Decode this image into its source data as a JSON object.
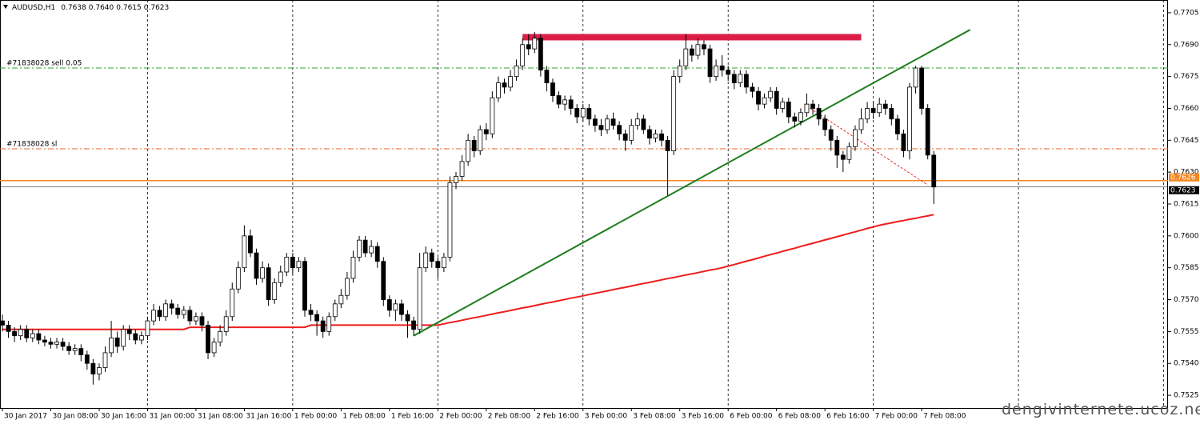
{
  "chart_data": {
    "type": "candlestick",
    "header": {
      "symbol": "AUDUSD,H1",
      "values": [
        "0.7638",
        "0.7640",
        "0.7615",
        "0.7623"
      ]
    },
    "categories": [
      "30 Jan 2017",
      null,
      null,
      null,
      null,
      null,
      null,
      null,
      "30 Jan 08:00",
      null,
      null,
      null,
      null,
      null,
      null,
      null,
      "30 Jan 16:00",
      null,
      null,
      null,
      null,
      null,
      null,
      null,
      "31 Jan 00:00",
      null,
      null,
      null,
      null,
      null,
      null,
      null,
      "31 Jan 08:00",
      null,
      null,
      null,
      null,
      null,
      null,
      null,
      "31 Jan 16:00",
      null,
      null,
      null,
      null,
      null,
      null,
      null,
      "1 Feb 00:00",
      null,
      null,
      null,
      null,
      null,
      null,
      null,
      "1 Feb 08:00",
      null,
      null,
      null,
      null,
      null,
      null,
      null,
      "1 Feb 16:00",
      null,
      null,
      null,
      null,
      null,
      null,
      null,
      "2 Feb 00:00",
      null,
      null,
      null,
      null,
      null,
      null,
      null,
      "2 Feb 08:00",
      null,
      null,
      null,
      null,
      null,
      null,
      null,
      "2 Feb 16:00",
      null,
      null,
      null,
      null,
      null,
      null,
      null,
      "3 Feb 00:00",
      null,
      null,
      null,
      null,
      null,
      null,
      null,
      "3 Feb 08:00",
      null,
      null,
      null,
      null,
      null,
      null,
      null,
      "3 Feb 16:00",
      null,
      null,
      null,
      null,
      null,
      null,
      null,
      "6 Feb 00:00",
      null,
      null,
      null,
      null,
      null,
      null,
      null,
      "6 Feb 08:00",
      null,
      null,
      null,
      null,
      null,
      null,
      null,
      "6 Feb 16:00",
      null,
      null,
      null,
      null,
      null,
      null,
      null,
      "7 Feb 00:00",
      null,
      null,
      null,
      null,
      null,
      null,
      null,
      "7 Feb 08:00",
      null,
      null
    ],
    "ohlc": [
      [
        0.756,
        0.7563,
        0.7555,
        0.7558
      ],
      [
        0.7558,
        0.756,
        0.7552,
        0.7555
      ],
      [
        0.7555,
        0.7557,
        0.755,
        0.7553
      ],
      [
        0.7553,
        0.7558,
        0.7551,
        0.7556
      ],
      [
        0.7556,
        0.7558,
        0.755,
        0.7552
      ],
      [
        0.7552,
        0.7556,
        0.755,
        0.7554
      ],
      [
        0.7554,
        0.7556,
        0.7549,
        0.7551
      ],
      [
        0.7551,
        0.7553,
        0.7548,
        0.755
      ],
      [
        0.755,
        0.7552,
        0.7547,
        0.7549
      ],
      [
        0.7549,
        0.7552,
        0.7547,
        0.755
      ],
      [
        0.755,
        0.7552,
        0.7546,
        0.7548
      ],
      [
        0.7548,
        0.755,
        0.7544,
        0.7546
      ],
      [
        0.7546,
        0.7549,
        0.7544,
        0.7547
      ],
      [
        0.7547,
        0.7549,
        0.7541,
        0.7544
      ],
      [
        0.7544,
        0.7546,
        0.7537,
        0.754
      ],
      [
        0.754,
        0.7542,
        0.753,
        0.7535
      ],
      [
        0.7535,
        0.754,
        0.7532,
        0.7538
      ],
      [
        0.7538,
        0.7548,
        0.7536,
        0.7545
      ],
      [
        0.7545,
        0.756,
        0.7543,
        0.7552
      ],
      [
        0.7552,
        0.7555,
        0.7545,
        0.7548
      ],
      [
        0.7548,
        0.7558,
        0.7546,
        0.7556
      ],
      [
        0.7556,
        0.7558,
        0.7551,
        0.7554
      ],
      [
        0.7554,
        0.7556,
        0.7549,
        0.7551
      ],
      [
        0.7551,
        0.7555,
        0.7549,
        0.7553
      ],
      [
        0.7553,
        0.7562,
        0.7551,
        0.756
      ],
      [
        0.756,
        0.7568,
        0.7558,
        0.7565
      ],
      [
        0.7565,
        0.7567,
        0.756,
        0.7562
      ],
      [
        0.7562,
        0.757,
        0.756,
        0.7568
      ],
      [
        0.7568,
        0.757,
        0.7563,
        0.7566
      ],
      [
        0.7566,
        0.7568,
        0.7561,
        0.7563
      ],
      [
        0.7563,
        0.7567,
        0.7561,
        0.7565
      ],
      [
        0.7565,
        0.7567,
        0.7558,
        0.756
      ],
      [
        0.756,
        0.7564,
        0.7558,
        0.7562
      ],
      [
        0.7562,
        0.7564,
        0.7555,
        0.7558
      ],
      [
        0.7558,
        0.756,
        0.7542,
        0.7545
      ],
      [
        0.7545,
        0.7552,
        0.7543,
        0.755
      ],
      [
        0.755,
        0.7558,
        0.7548,
        0.7555
      ],
      [
        0.7555,
        0.7565,
        0.7553,
        0.7562
      ],
      [
        0.7562,
        0.7578,
        0.756,
        0.7575
      ],
      [
        0.7575,
        0.7588,
        0.7573,
        0.7585
      ],
      [
        0.7585,
        0.7605,
        0.7583,
        0.76
      ],
      [
        0.76,
        0.7603,
        0.759,
        0.7592
      ],
      [
        0.7592,
        0.7594,
        0.7577,
        0.758
      ],
      [
        0.758,
        0.7588,
        0.7578,
        0.7585
      ],
      [
        0.7585,
        0.7587,
        0.7567,
        0.757
      ],
      [
        0.757,
        0.758,
        0.7568,
        0.7578
      ],
      [
        0.7578,
        0.7586,
        0.7576,
        0.7583
      ],
      [
        0.7583,
        0.7592,
        0.7581,
        0.759
      ],
      [
        0.759,
        0.7592,
        0.7582,
        0.7585
      ],
      [
        0.7585,
        0.759,
        0.7583,
        0.7588
      ],
      [
        0.7588,
        0.759,
        0.7562,
        0.7565
      ],
      [
        0.7565,
        0.7568,
        0.756,
        0.7563
      ],
      [
        0.7563,
        0.7565,
        0.7553,
        0.756
      ],
      [
        0.756,
        0.7562,
        0.7552,
        0.7555
      ],
      [
        0.7555,
        0.7564,
        0.7553,
        0.7562
      ],
      [
        0.7562,
        0.757,
        0.756,
        0.7568
      ],
      [
        0.7568,
        0.7575,
        0.7566,
        0.7572
      ],
      [
        0.7572,
        0.7583,
        0.757,
        0.758
      ],
      [
        0.758,
        0.7593,
        0.7578,
        0.759
      ],
      [
        0.759,
        0.76,
        0.7588,
        0.7598
      ],
      [
        0.7598,
        0.76,
        0.759,
        0.7592
      ],
      [
        0.7592,
        0.7598,
        0.759,
        0.7595
      ],
      [
        0.7595,
        0.7597,
        0.7585,
        0.7588
      ],
      [
        0.7588,
        0.759,
        0.7567,
        0.757
      ],
      [
        0.757,
        0.7572,
        0.7562,
        0.7565
      ],
      [
        0.7565,
        0.757,
        0.756,
        0.7568
      ],
      [
        0.7568,
        0.757,
        0.756,
        0.7563
      ],
      [
        0.7563,
        0.7565,
        0.7552,
        0.756
      ],
      [
        0.756,
        0.7562,
        0.7553,
        0.7556
      ],
      [
        0.7556,
        0.7592,
        0.7554,
        0.7585
      ],
      [
        0.7585,
        0.7595,
        0.7583,
        0.7592
      ],
      [
        0.7592,
        0.7594,
        0.7585,
        0.7588
      ],
      [
        0.7588,
        0.759,
        0.758,
        0.7585
      ],
      [
        0.7585,
        0.7592,
        0.7583,
        0.759
      ],
      [
        0.759,
        0.7628,
        0.7588,
        0.7625
      ],
      [
        0.7625,
        0.763,
        0.7622,
        0.7628
      ],
      [
        0.7628,
        0.7638,
        0.7626,
        0.7635
      ],
      [
        0.7635,
        0.7648,
        0.7633,
        0.7645
      ],
      [
        0.7645,
        0.7647,
        0.7637,
        0.764
      ],
      [
        0.764,
        0.7652,
        0.7638,
        0.765
      ],
      [
        0.765,
        0.7653,
        0.7645,
        0.7648
      ],
      [
        0.7648,
        0.7668,
        0.7646,
        0.7665
      ],
      [
        0.7665,
        0.7675,
        0.7663,
        0.7672
      ],
      [
        0.7672,
        0.7674,
        0.7667,
        0.767
      ],
      [
        0.767,
        0.7678,
        0.7668,
        0.7675
      ],
      [
        0.7675,
        0.7683,
        0.7673,
        0.768
      ],
      [
        0.768,
        0.7693,
        0.7678,
        0.769
      ],
      [
        0.769,
        0.7695,
        0.7685,
        0.7688
      ],
      [
        0.7688,
        0.7696,
        0.7686,
        0.7693
      ],
      [
        0.7693,
        0.7695,
        0.7675,
        0.7678
      ],
      [
        0.7678,
        0.768,
        0.7668,
        0.7672
      ],
      [
        0.7672,
        0.7674,
        0.7663,
        0.7666
      ],
      [
        0.7666,
        0.7668,
        0.766,
        0.7662
      ],
      [
        0.7662,
        0.7666,
        0.7659,
        0.7664
      ],
      [
        0.7664,
        0.7666,
        0.7657,
        0.766
      ],
      [
        0.766,
        0.7662,
        0.7653,
        0.7656
      ],
      [
        0.7656,
        0.7662,
        0.7654,
        0.766
      ],
      [
        0.766,
        0.7662,
        0.7652,
        0.7655
      ],
      [
        0.7655,
        0.7657,
        0.7649,
        0.7652
      ],
      [
        0.7652,
        0.7655,
        0.7647,
        0.765
      ],
      [
        0.765,
        0.7657,
        0.7648,
        0.7655
      ],
      [
        0.7655,
        0.7658,
        0.765,
        0.7652
      ],
      [
        0.7652,
        0.7654,
        0.7645,
        0.7648
      ],
      [
        0.7648,
        0.765,
        0.764,
        0.7645
      ],
      [
        0.7645,
        0.7655,
        0.7643,
        0.7652
      ],
      [
        0.7652,
        0.7658,
        0.765,
        0.7655
      ],
      [
        0.7655,
        0.7657,
        0.7648,
        0.765
      ],
      [
        0.765,
        0.7652,
        0.7643,
        0.7646
      ],
      [
        0.7646,
        0.765,
        0.7644,
        0.7648
      ],
      [
        0.7648,
        0.765,
        0.7642,
        0.7645
      ],
      [
        0.7645,
        0.7647,
        0.7619,
        0.764
      ],
      [
        0.764,
        0.7678,
        0.7638,
        0.7675
      ],
      [
        0.7675,
        0.7683,
        0.7672,
        0.768
      ],
      [
        0.768,
        0.7695,
        0.7678,
        0.7688
      ],
      [
        0.7688,
        0.769,
        0.7682,
        0.7685
      ],
      [
        0.7685,
        0.7693,
        0.7683,
        0.769
      ],
      [
        0.769,
        0.7692,
        0.7685,
        0.7688
      ],
      [
        0.7688,
        0.769,
        0.7672,
        0.7675
      ],
      [
        0.7675,
        0.7683,
        0.7673,
        0.768
      ],
      [
        0.768,
        0.7685,
        0.7675,
        0.7678
      ],
      [
        0.7678,
        0.768,
        0.7673,
        0.7676
      ],
      [
        0.7676,
        0.7678,
        0.7669,
        0.7672
      ],
      [
        0.7672,
        0.7678,
        0.767,
        0.7676
      ],
      [
        0.7676,
        0.7678,
        0.7667,
        0.767
      ],
      [
        0.767,
        0.7672,
        0.7665,
        0.7668
      ],
      [
        0.7668,
        0.767,
        0.7659,
        0.7662
      ],
      [
        0.7662,
        0.7667,
        0.766,
        0.7665
      ],
      [
        0.7665,
        0.767,
        0.7663,
        0.7668
      ],
      [
        0.7668,
        0.767,
        0.7657,
        0.766
      ],
      [
        0.766,
        0.7665,
        0.7658,
        0.7663
      ],
      [
        0.7663,
        0.7665,
        0.7653,
        0.7656
      ],
      [
        0.7656,
        0.7658,
        0.7651,
        0.7654
      ],
      [
        0.7654,
        0.766,
        0.7652,
        0.7658
      ],
      [
        0.7658,
        0.7667,
        0.7656,
        0.7662
      ],
      [
        0.7662,
        0.7664,
        0.7657,
        0.766
      ],
      [
        0.766,
        0.7662,
        0.7652,
        0.7655
      ],
      [
        0.7655,
        0.7657,
        0.7647,
        0.765
      ],
      [
        0.765,
        0.7652,
        0.764,
        0.7645
      ],
      [
        0.7645,
        0.7647,
        0.7632,
        0.7638
      ],
      [
        0.7638,
        0.764,
        0.763,
        0.7636
      ],
      [
        0.7636,
        0.7644,
        0.7634,
        0.7642
      ],
      [
        0.7642,
        0.7652,
        0.764,
        0.765
      ],
      [
        0.765,
        0.766,
        0.7648,
        0.7655
      ],
      [
        0.7655,
        0.7663,
        0.7653,
        0.766
      ],
      [
        0.766,
        0.7663,
        0.7655,
        0.7658
      ],
      [
        0.7658,
        0.7665,
        0.7656,
        0.7662
      ],
      [
        0.7662,
        0.7664,
        0.7657,
        0.766
      ],
      [
        0.766,
        0.7662,
        0.7652,
        0.7655
      ],
      [
        0.7655,
        0.7657,
        0.7645,
        0.7648
      ],
      [
        0.7648,
        0.765,
        0.7637,
        0.764
      ],
      [
        0.764,
        0.7672,
        0.7636,
        0.767
      ],
      [
        0.767,
        0.768,
        0.7667,
        0.7679
      ],
      [
        0.7679,
        0.768,
        0.7657,
        0.766
      ],
      [
        0.766,
        0.7662,
        0.7636,
        0.7638
      ],
      [
        0.7638,
        0.764,
        0.7615,
        0.7623
      ]
    ],
    "moving_average": {
      "color": "#ee1c1c",
      "values": [
        0.7556,
        0.7556,
        0.7556,
        0.7556,
        0.7556,
        0.7556,
        0.7556,
        0.7556,
        0.7556,
        0.7556,
        0.7556,
        0.7556,
        0.7556,
        0.7556,
        0.7556,
        0.7556,
        0.7556,
        0.7556,
        0.7556,
        0.7556,
        0.7556,
        0.7556,
        0.7556,
        0.7556,
        0.7556,
        0.7556,
        0.7556,
        0.7556,
        0.7556,
        0.7556,
        0.7556,
        0.7557,
        0.7557,
        0.7557,
        0.7557,
        0.7557,
        0.7557,
        0.7557,
        0.7557,
        0.7557,
        0.7557,
        0.7557,
        0.7557,
        0.7557,
        0.7557,
        0.7557,
        0.7557,
        0.7557,
        0.7557,
        0.7557,
        0.7557,
        0.7558,
        0.7558,
        0.7558,
        0.7558,
        0.7558,
        0.7558,
        0.7558,
        0.7558,
        0.7558,
        0.7558,
        0.7558,
        0.7558,
        0.7558,
        0.7558,
        0.7558,
        0.7558,
        0.7558,
        0.7558,
        0.7558,
        0.7558,
        0.7558,
        0.7558,
        0.75586,
        0.75592,
        0.75597,
        0.75603,
        0.75609,
        0.75615,
        0.7562,
        0.75626,
        0.75632,
        0.75638,
        0.75643,
        0.75649,
        0.75655,
        0.75661,
        0.75666,
        0.75672,
        0.75678,
        0.75684,
        0.75689,
        0.75695,
        0.75701,
        0.75707,
        0.75712,
        0.75718,
        0.75724,
        0.7573,
        0.75735,
        0.75741,
        0.75747,
        0.75753,
        0.75758,
        0.75764,
        0.7577,
        0.75776,
        0.75781,
        0.75787,
        0.75793,
        0.75799,
        0.75804,
        0.7581,
        0.75816,
        0.75821,
        0.75827,
        0.75833,
        0.75839,
        0.75844,
        0.7585,
        0.75858,
        0.75865,
        0.75873,
        0.75881,
        0.75888,
        0.75896,
        0.75904,
        0.75912,
        0.75919,
        0.75927,
        0.75935,
        0.75942,
        0.7595,
        0.75958,
        0.75965,
        0.75973,
        0.75981,
        0.75988,
        0.75996,
        0.76004,
        0.76012,
        0.76019,
        0.76027,
        0.76035,
        0.76042,
        0.7605,
        0.76056,
        0.76061,
        0.76067,
        0.76072,
        0.76078,
        0.76083,
        0.76089,
        0.76094,
        0.761
      ]
    },
    "ylim": [
      0.7519,
      0.7711
    ],
    "yticks": [
      0.7705,
      {
        "value": 0.769,
        "label": "0.7690"
      },
      0.7675,
      {
        "value": 0.766,
        "label": "0.7660"
      },
      0.7645,
      {
        "value": 0.763,
        "label": "0.7630"
      },
      0.7615,
      {
        "value": 0.76,
        "label": "0.7600"
      },
      0.7585,
      {
        "value": 0.757,
        "label": "0.7570"
      },
      0.7555,
      {
        "value": 0.754,
        "label": "0.7540"
      },
      0.7525
    ],
    "levels": [
      {
        "label": "#71838028 sell 0.05",
        "value": 0.7679,
        "color": "#2ea02e"
      },
      {
        "label": "#71838028 sl",
        "value": 0.7641,
        "color": "#e8662a"
      }
    ],
    "price_lines": [
      {
        "value": 0.7626,
        "color": "#f4861f"
      },
      {
        "value": 0.7623,
        "color": "#000000"
      }
    ],
    "trendline": {
      "color": "#1e7d1e",
      "from": {
        "bar": 68,
        "price": 0.7553
      },
      "to": {
        "bar": 160,
        "price": 0.7697
      }
    },
    "zone": {
      "color": "#dc1e46",
      "from": 86,
      "to": 142,
      "high": 0.7695,
      "low": 0.7692
    },
    "order_line": {
      "color": "#e23030",
      "from": {
        "bar": 133,
        "price": 0.7661
      },
      "to": {
        "bar": 153,
        "price": 0.7624
      }
    },
    "watermark": "dengivinternete.ucoz.net",
    "grid": true
  }
}
